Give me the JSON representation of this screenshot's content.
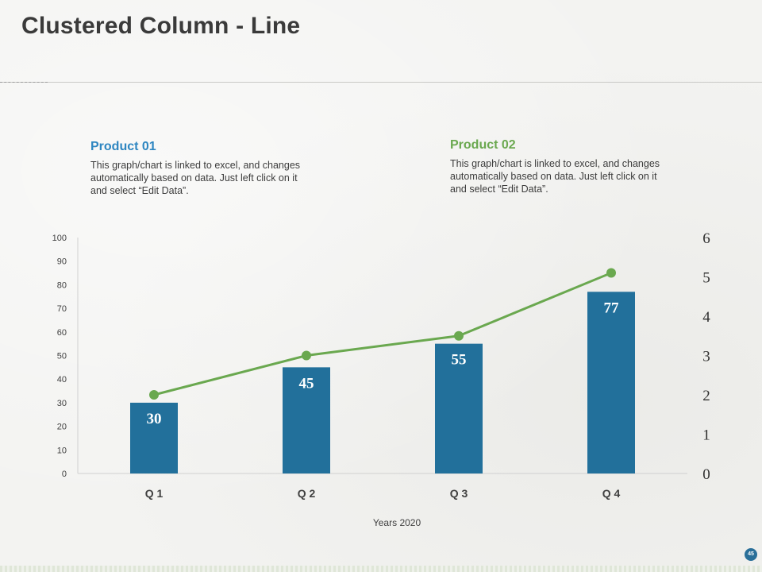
{
  "slide": {
    "title": "Clustered Column - Line",
    "page_number": "45"
  },
  "products": [
    {
      "heading": "Product 01",
      "description": "This graph/chart is linked to excel, and changes automatically based on data. Just left click on it and select “Edit Data”."
    },
    {
      "heading": "Product 02",
      "description": "This graph/chart is linked to excel, and changes automatically based on data. Just left click on it and select “Edit Data”."
    }
  ],
  "colors": {
    "bar": "#22709b",
    "line": "#6aa84f",
    "product01": "#2e86c1",
    "product02": "#6aa84f"
  },
  "chart_data": {
    "type": "bar+line",
    "categories": [
      "Q 1",
      "Q 2",
      "Q 3",
      "Q 4"
    ],
    "xlabel": "Years 2020",
    "series": [
      {
        "name": "Product 01",
        "kind": "bar",
        "axis": "primary",
        "values": [
          30,
          45,
          55,
          77
        ]
      },
      {
        "name": "Product 02",
        "kind": "line",
        "axis": "secondary",
        "values": [
          2.0,
          3.0,
          3.5,
          5.1
        ]
      }
    ],
    "primary_axis": {
      "min": 0,
      "max": 100,
      "step": 10,
      "ticks": [
        "0",
        "10",
        "20",
        "30",
        "40",
        "50",
        "60",
        "70",
        "80",
        "90",
        "100"
      ]
    },
    "secondary_axis": {
      "min": 0,
      "max": 6,
      "step": 1,
      "ticks": [
        "0",
        "1",
        "2",
        "3",
        "4",
        "5",
        "6"
      ]
    },
    "data_labels": [
      "30",
      "45",
      "55",
      "77"
    ],
    "grid": false
  }
}
